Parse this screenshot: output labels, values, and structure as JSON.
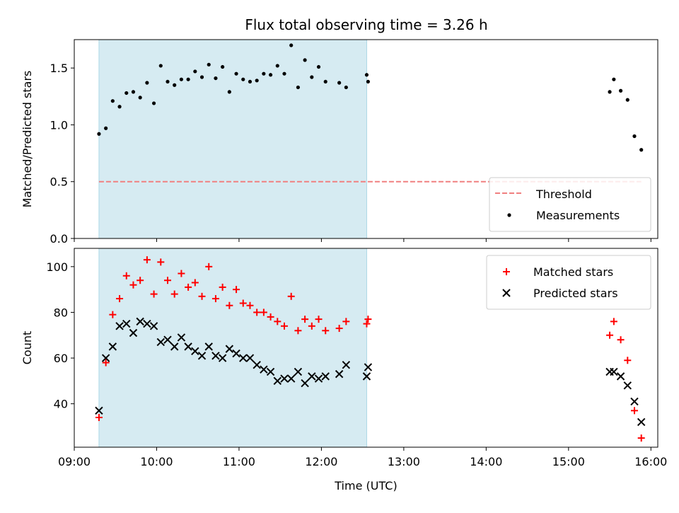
{
  "title": "Flux total observing time = 3.26 h",
  "chart_data": [
    {
      "type": "scatter",
      "panel": "top",
      "ylabel": "Matched/Predicted stars",
      "ylim": [
        0,
        1.75
      ],
      "yticks": [
        0.0,
        0.5,
        1.0,
        1.5
      ],
      "ytick_labels": [
        "0.0",
        "0.5",
        "1.0",
        "1.5"
      ],
      "xlim": [
        "09:00",
        "16:05"
      ],
      "shaded_span": [
        "09:18",
        "12:33"
      ],
      "legend_position": "lower-right",
      "threshold": {
        "name": "Threshold",
        "value": 0.5,
        "x_range": [
          "09:18",
          "15:53"
        ],
        "color": "#f08080"
      },
      "series": [
        {
          "name": "Measurements",
          "color": "#000000",
          "points": [
            [
              "09:18",
              0.92
            ],
            [
              "09:23",
              0.97
            ],
            [
              "09:28",
              1.21
            ],
            [
              "09:33",
              1.16
            ],
            [
              "09:38",
              1.28
            ],
            [
              "09:43",
              1.29
            ],
            [
              "09:48",
              1.24
            ],
            [
              "09:53",
              1.37
            ],
            [
              "09:58",
              1.19
            ],
            [
              "10:03",
              1.52
            ],
            [
              "10:08",
              1.38
            ],
            [
              "10:13",
              1.35
            ],
            [
              "10:18",
              1.4
            ],
            [
              "10:23",
              1.4
            ],
            [
              "10:28",
              1.47
            ],
            [
              "10:33",
              1.42
            ],
            [
              "10:38",
              1.53
            ],
            [
              "10:43",
              1.41
            ],
            [
              "10:48",
              1.51
            ],
            [
              "10:53",
              1.29
            ],
            [
              "10:58",
              1.45
            ],
            [
              "11:03",
              1.4
            ],
            [
              "11:08",
              1.38
            ],
            [
              "11:13",
              1.39
            ],
            [
              "11:18",
              1.45
            ],
            [
              "11:23",
              1.44
            ],
            [
              "11:28",
              1.52
            ],
            [
              "11:33",
              1.45
            ],
            [
              "11:38",
              1.7
            ],
            [
              "11:43",
              1.33
            ],
            [
              "11:48",
              1.57
            ],
            [
              "11:53",
              1.42
            ],
            [
              "11:58",
              1.51
            ],
            [
              "12:03",
              1.38
            ],
            [
              "12:13",
              1.37
            ],
            [
              "12:18",
              1.33
            ],
            [
              "12:33",
              1.44
            ],
            [
              "12:34",
              1.38
            ],
            [
              "15:30",
              1.29
            ],
            [
              "15:33",
              1.4
            ],
            [
              "15:38",
              1.3
            ],
            [
              "15:43",
              1.22
            ],
            [
              "15:48",
              0.9
            ],
            [
              "15:53",
              0.78
            ]
          ]
        }
      ]
    },
    {
      "type": "scatter",
      "panel": "bottom",
      "xlabel": "Time (UTC)",
      "ylabel": "Count",
      "ylim": [
        21,
        108
      ],
      "yticks": [
        40,
        60,
        80,
        100
      ],
      "ytick_labels": [
        "40",
        "60",
        "80",
        "100"
      ],
      "xlim": [
        "09:00",
        "16:05"
      ],
      "xticks": [
        "09:00",
        "10:00",
        "11:00",
        "12:00",
        "13:00",
        "14:00",
        "15:00",
        "16:00"
      ],
      "xtick_labels": [
        "09:00",
        "10:00",
        "11:00",
        "12:00",
        "13:00",
        "14:00",
        "15:00",
        "16:00"
      ],
      "shaded_span": [
        "09:18",
        "12:33"
      ],
      "legend_position": "upper-right",
      "series": [
        {
          "name": "Matched stars",
          "marker": "plus",
          "color": "#ff0000",
          "points": [
            [
              "09:18",
              34
            ],
            [
              "09:23",
              58
            ],
            [
              "09:28",
              79
            ],
            [
              "09:33",
              86
            ],
            [
              "09:38",
              96
            ],
            [
              "09:43",
              92
            ],
            [
              "09:48",
              94
            ],
            [
              "09:53",
              103
            ],
            [
              "09:58",
              88
            ],
            [
              "10:03",
              102
            ],
            [
              "10:08",
              94
            ],
            [
              "10:13",
              88
            ],
            [
              "10:18",
              97
            ],
            [
              "10:23",
              91
            ],
            [
              "10:28",
              93
            ],
            [
              "10:33",
              87
            ],
            [
              "10:38",
              100
            ],
            [
              "10:43",
              86
            ],
            [
              "10:48",
              91
            ],
            [
              "10:53",
              83
            ],
            [
              "10:58",
              90
            ],
            [
              "11:03",
              84
            ],
            [
              "11:08",
              83
            ],
            [
              "11:13",
              80
            ],
            [
              "11:18",
              80
            ],
            [
              "11:23",
              78
            ],
            [
              "11:28",
              76
            ],
            [
              "11:33",
              74
            ],
            [
              "11:38",
              87
            ],
            [
              "11:43",
              72
            ],
            [
              "11:48",
              77
            ],
            [
              "11:53",
              74
            ],
            [
              "11:58",
              77
            ],
            [
              "12:03",
              72
            ],
            [
              "12:13",
              73
            ],
            [
              "12:18",
              76
            ],
            [
              "12:33",
              75
            ],
            [
              "12:34",
              77
            ],
            [
              "15:30",
              70
            ],
            [
              "15:33",
              76
            ],
            [
              "15:38",
              68
            ],
            [
              "15:43",
              59
            ],
            [
              "15:48",
              37
            ],
            [
              "15:53",
              25
            ]
          ]
        },
        {
          "name": "Predicted stars",
          "marker": "x",
          "color": "#000000",
          "points": [
            [
              "09:18",
              37
            ],
            [
              "09:23",
              60
            ],
            [
              "09:28",
              65
            ],
            [
              "09:33",
              74
            ],
            [
              "09:38",
              75
            ],
            [
              "09:43",
              71
            ],
            [
              "09:48",
              76
            ],
            [
              "09:53",
              75
            ],
            [
              "09:58",
              74
            ],
            [
              "10:03",
              67
            ],
            [
              "10:08",
              68
            ],
            [
              "10:13",
              65
            ],
            [
              "10:18",
              69
            ],
            [
              "10:23",
              65
            ],
            [
              "10:28",
              63
            ],
            [
              "10:33",
              61
            ],
            [
              "10:38",
              65
            ],
            [
              "10:43",
              61
            ],
            [
              "10:48",
              60
            ],
            [
              "10:53",
              64
            ],
            [
              "10:58",
              62
            ],
            [
              "11:03",
              60
            ],
            [
              "11:08",
              60
            ],
            [
              "11:13",
              57
            ],
            [
              "11:18",
              55
            ],
            [
              "11:23",
              54
            ],
            [
              "11:28",
              50
            ],
            [
              "11:33",
              51
            ],
            [
              "11:38",
              51
            ],
            [
              "11:43",
              54
            ],
            [
              "11:48",
              49
            ],
            [
              "11:53",
              52
            ],
            [
              "11:58",
              51
            ],
            [
              "12:03",
              52
            ],
            [
              "12:13",
              53
            ],
            [
              "12:18",
              57
            ],
            [
              "12:33",
              52
            ],
            [
              "12:34",
              56
            ],
            [
              "15:30",
              54
            ],
            [
              "15:33",
              54
            ],
            [
              "15:38",
              52
            ],
            [
              "15:43",
              48
            ],
            [
              "15:48",
              41
            ],
            [
              "15:53",
              32
            ]
          ]
        }
      ]
    }
  ]
}
